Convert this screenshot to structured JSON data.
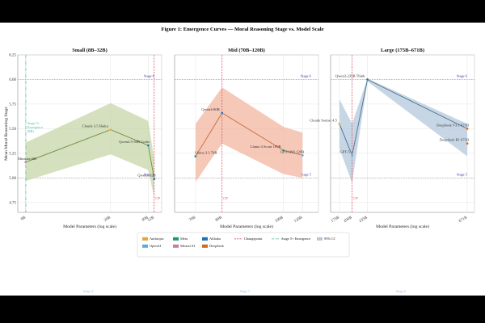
{
  "figure_title": "Figure 1: Emergence Curves — Moral Reasoning Stage vs. Model Scale",
  "colors": {
    "anthropic": "#e6a532",
    "openai": "#5aace0",
    "meta": "#1a9a72",
    "mistral": "#cc79a7",
    "alibaba": "#1f6fb5",
    "deepseek": "#d2691e",
    "changepoint": "#e0455a",
    "emergence": "#5cc8b4",
    "ci_small": "#c5d6a8",
    "ci_mid": "#f2b6a0",
    "ci_large": "#b4c8dc",
    "line_small": "#6b8f3a",
    "line_mid": "#c56a3e",
    "line_large": "#4a6f8c"
  },
  "legend": {
    "items": [
      {
        "label": "Anthropic",
        "kind": "swatch",
        "color": "#e6a532"
      },
      {
        "label": "OpenAI",
        "kind": "swatch",
        "color": "#5aace0"
      },
      {
        "label": "Meta",
        "kind": "swatch",
        "color": "#1a9a72"
      },
      {
        "label": "Mistral AI",
        "kind": "swatch",
        "color": "#cc79a7"
      },
      {
        "label": "Alibaba",
        "kind": "swatch",
        "color": "#1f6fb5"
      },
      {
        "label": "DeepSeek",
        "kind": "swatch",
        "color": "#d2691e"
      },
      {
        "label": "Changepoint",
        "kind": "dashed",
        "color": "#e0455a"
      },
      {
        "label": "Stage 5+ Emergence",
        "kind": "dashdot",
        "color": "#5cc8b4"
      },
      {
        "label": "95% CI",
        "kind": "swatch",
        "color": "#b4c8dc"
      }
    ]
  },
  "chart_data": [
    {
      "type": "line",
      "title": "Small (8B–32B)",
      "xlabel": "Model Parameters (log scale)",
      "ylabel": "Mean Moral Reasoning Stage",
      "ylim": [
        4.65,
        6.25
      ],
      "yticks": [
        "4.75",
        "5.00",
        "5.25",
        "5.50",
        "5.75",
        "6.00",
        "6.25"
      ],
      "xticks": [
        {
          "label": "8B",
          "value": 8
        },
        {
          "label": "20B",
          "value": 20
        },
        {
          "label": "30B",
          "value": 30
        },
        {
          "label": "32B",
          "value": 32
        }
      ],
      "xlim": [
        7.6,
        33.5
      ],
      "points": [
        {
          "label": "Ministral 8B",
          "x": 8,
          "y": 5.16,
          "color": "#cc79a7"
        },
        {
          "label": "Claude 3.5 Haiku",
          "x": 20,
          "y": 5.49,
          "color": "#e6a532"
        },
        {
          "label": "Qwen2.5-30B Coder",
          "x": 30,
          "y": 5.33,
          "color": "#1f6fb5"
        },
        {
          "label": "Qwen3-32B",
          "x": 32,
          "y": 4.99,
          "color": "#1f6fb5"
        }
      ],
      "ci_upper": [
        5.36,
        5.76,
        5.58,
        5.18
      ],
      "ci_lower": [
        4.97,
        5.24,
        5.08,
        4.8
      ],
      "changepoint": {
        "x": 32,
        "label": "CP"
      },
      "emergence": {
        "x": 8,
        "label": "Stage 5+ Emergence (8B)"
      },
      "stage_labels": [
        "Stage 6",
        "Stage 5"
      ],
      "faint_label": "Stage 4"
    },
    {
      "type": "line",
      "title": "Mid (70B–120B)",
      "xlabel": "Model Parameters (log scale)",
      "ylim": [
        4.65,
        6.25
      ],
      "xticks": [
        {
          "label": "70B",
          "value": 70
        },
        {
          "label": "80B",
          "value": 80
        },
        {
          "label": "109B",
          "value": 109
        },
        {
          "label": "120B",
          "value": 120
        }
      ],
      "xlim": [
        64,
        128
      ],
      "points": [
        {
          "label": "Llama 3.3 70B",
          "x": 70,
          "y": 5.22,
          "color": "#1a9a72"
        },
        {
          "label": "Qwen3-80B",
          "x": 80,
          "y": 5.66,
          "color": "#1f6fb5"
        },
        {
          "label": "Llama 4 Scout 109B",
          "x": 109,
          "y": 5.28,
          "color": "#1a9a72"
        },
        {
          "label": "GPT-OSS 120B",
          "x": 120,
          "y": 5.23,
          "color": "#5aace0"
        }
      ],
      "ci_upper": [
        5.55,
        5.92,
        5.52,
        5.46
      ],
      "ci_lower": [
        4.96,
        5.35,
        5.04,
        5.0
      ],
      "changepoint": {
        "x": 80,
        "label": "CP"
      },
      "stage_labels": [
        "Stage 6",
        "Stage 5"
      ],
      "faint_label": "Stage 5"
    },
    {
      "type": "line",
      "title": "Large (175B–671B)",
      "xlabel": "Model Parameters (log scale)",
      "ylim": [
        4.65,
        6.25
      ],
      "xticks": [
        {
          "label": "175B",
          "value": 175
        },
        {
          "label": "200B",
          "value": 200
        },
        {
          "label": "235B",
          "value": 235
        },
        {
          "label": "671B",
          "value": 671
        }
      ],
      "xlim": [
        165,
        700
      ],
      "points": [
        {
          "label": "Claude Sonnet 4.5",
          "x": 175,
          "y": 5.55,
          "color": "#e6a532"
        },
        {
          "label": "GPT-5",
          "x": 200,
          "y": 5.23,
          "color": "#5aace0"
        },
        {
          "label": "Qwen3-235B Think",
          "x": 235,
          "y": 6.0,
          "color": "#1f6fb5"
        },
        {
          "label": "DeepSeek V3.1 671B",
          "x": 671,
          "y": 5.5,
          "color": "#d2691e"
        },
        {
          "label": "DeepSeek R1 671B",
          "x": 671,
          "y": 5.35,
          "color": "#d2691e"
        }
      ],
      "ci_upper": [
        5.8,
        5.55,
        6.01,
        5.55
      ],
      "ci_lower": [
        5.3,
        4.95,
        5.98,
        5.22
      ],
      "changepoint": {
        "x": 200,
        "label": "CP"
      },
      "stage_labels": [
        "Stage 6",
        "Stage 5"
      ],
      "faint_label": "Stage 6"
    }
  ]
}
